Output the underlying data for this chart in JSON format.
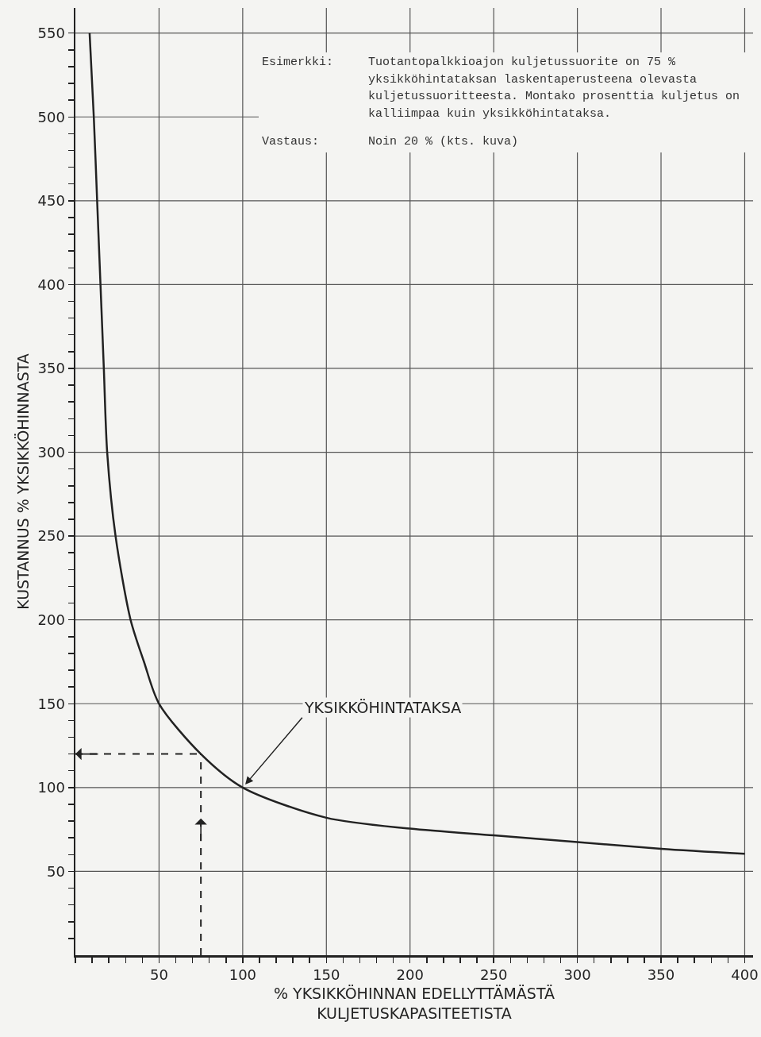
{
  "chart_data": {
    "type": "line",
    "xlabel": "% YKSIKKÖHINNAN EDELLYTTÄMÄSTÄ\nKULJETUSKAPASITEETISTA",
    "ylabel": "KUSTANNUS % YKSIKKÖHINNASTA",
    "series": [
      {
        "color": "#222222",
        "x": [
          8.5,
          11,
          13,
          15,
          17,
          19,
          24,
          33,
          41,
          50,
          75,
          100,
          150,
          200,
          250,
          300,
          350,
          400
        ],
        "values": [
          550,
          500,
          450,
          400,
          350,
          300,
          250,
          200,
          175,
          150,
          120,
          100,
          82,
          75.5,
          71.5,
          67.5,
          63.5,
          60.5
        ]
      }
    ],
    "xlim": [
      0,
      405
    ],
    "ylim": [
      0,
      565
    ],
    "xticks": [
      {
        "value": 0,
        "label": null
      },
      {
        "value": 10,
        "label": null
      },
      {
        "value": 20,
        "label": null
      },
      {
        "value": 30,
        "label": null
      },
      {
        "value": 40,
        "label": null
      },
      50,
      {
        "value": 60,
        "label": null
      },
      {
        "value": 70,
        "label": null
      },
      {
        "value": 80,
        "label": null
      },
      {
        "value": 90,
        "label": null
      },
      100,
      {
        "value": 110,
        "label": null
      },
      {
        "value": 120,
        "label": null
      },
      {
        "value": 130,
        "label": null
      },
      {
        "value": 140,
        "label": null
      },
      150,
      {
        "value": 160,
        "label": null
      },
      {
        "value": 170,
        "label": null
      },
      {
        "value": 180,
        "label": null
      },
      {
        "value": 190,
        "label": null
      },
      200,
      {
        "value": 210,
        "label": null
      },
      {
        "value": 220,
        "label": null
      },
      {
        "value": 230,
        "label": null
      },
      {
        "value": 240,
        "label": null
      },
      250,
      {
        "value": 260,
        "label": null
      },
      {
        "value": 270,
        "label": null
      },
      {
        "value": 280,
        "label": null
      },
      {
        "value": 290,
        "label": null
      },
      300,
      {
        "value": 310,
        "label": null
      },
      {
        "value": 320,
        "label": null
      },
      {
        "value": 330,
        "label": null
      },
      {
        "value": 340,
        "label": null
      },
      350,
      {
        "value": 360,
        "label": null
      },
      {
        "value": 370,
        "label": null
      },
      {
        "value": 380,
        "label": null
      },
      {
        "value": 390,
        "label": null
      },
      400
    ],
    "yticks": [
      {
        "value": 10,
        "label": null
      },
      {
        "value": 20,
        "label": null
      },
      {
        "value": 30,
        "label": null
      },
      {
        "value": 40,
        "label": null
      },
      50,
      {
        "value": 60,
        "label": null
      },
      {
        "value": 70,
        "label": null
      },
      {
        "value": 80,
        "label": null
      },
      {
        "value": 90,
        "label": null
      },
      100,
      {
        "value": 110,
        "label": null
      },
      {
        "value": 120,
        "label": null
      },
      {
        "value": 130,
        "label": null
      },
      {
        "value": 140,
        "label": null
      },
      150,
      {
        "value": 160,
        "label": null
      },
      {
        "value": 170,
        "label": null
      },
      {
        "value": 180,
        "label": null
      },
      {
        "value": 190,
        "label": null
      },
      200,
      {
        "value": 210,
        "label": null
      },
      {
        "value": 220,
        "label": null
      },
      {
        "value": 230,
        "label": null
      },
      {
        "value": 240,
        "label": null
      },
      250,
      {
        "value": 260,
        "label": null
      },
      {
        "value": 270,
        "label": null
      },
      {
        "value": 280,
        "label": null
      },
      {
        "value": 290,
        "label": null
      },
      300,
      {
        "value": 310,
        "label": null
      },
      {
        "value": 320,
        "label": null
      },
      {
        "value": 330,
        "label": null
      },
      {
        "value": 340,
        "label": null
      },
      350,
      {
        "value": 360,
        "label": null
      },
      {
        "value": 370,
        "label": null
      },
      {
        "value": 380,
        "label": null
      },
      {
        "value": 390,
        "label": null
      },
      400,
      {
        "value": 410,
        "label": null
      },
      {
        "value": 420,
        "label": null
      },
      {
        "value": 430,
        "label": null
      },
      {
        "value": 440,
        "label": null
      },
      450,
      {
        "value": 460,
        "label": null
      },
      {
        "value": 470,
        "label": null
      },
      {
        "value": 480,
        "label": null
      },
      {
        "value": 490,
        "label": null
      },
      500,
      {
        "value": 510,
        "label": null
      },
      {
        "value": 520,
        "label": null
      },
      {
        "value": 530,
        "label": null
      },
      {
        "value": 540,
        "label": null
      },
      550
    ],
    "ref_lines": [
      {
        "axis": "x",
        "value": 75,
        "color": "#222222",
        "line_style": "dashed"
      },
      {
        "axis": "y",
        "value": 120,
        "color": "#222222",
        "line_style": "dashed"
      }
    ],
    "grid": true,
    "marker": "none",
    "line_style": "solid",
    "annotations": [
      "Esimerkki:",
      "Tuotantopalkkioajon kuljetussuorite on 75 % yksikköhintataksan laskentaperusteena olevasta kuljetussuoritteesta. Montako prosenttia kuljetus on kalliimpaa kuin yksikköhintataksa.",
      "Vastaus:",
      "Noin 20 %  (kts. kuva)",
      {
        "text": "YKSIKKÖHINTATAKSA",
        "x": 100,
        "y": 100
      }
    ]
  }
}
